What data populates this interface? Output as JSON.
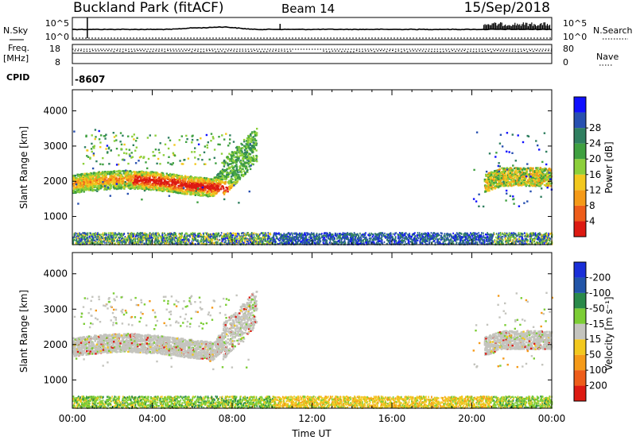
{
  "header": {
    "station": "Buckland Park (fitACF)",
    "beam": "Beam 14",
    "date": "15/Sep/2018"
  },
  "panels": {
    "nsky": {
      "label": "N.Sky",
      "ticks": [
        "10^5",
        "10^0"
      ],
      "right_ticks": [
        "10^5",
        "10^0"
      ],
      "right_label": "N.Search"
    },
    "freq": {
      "label": "Freq.",
      "unit": "[MHz]",
      "ticks": [
        "18",
        "8"
      ],
      "right_ticks": [
        "80",
        "0"
      ],
      "right_label": "Nave"
    },
    "cpid": {
      "label": "CPID",
      "value": "-8607"
    }
  },
  "chart_data": [
    {
      "type": "heatmap",
      "name": "power-panel",
      "ylabel": "Slant Range [km]",
      "yticks": [
        1000,
        2000,
        3000,
        4000
      ],
      "ylim": [
        200,
        4600
      ],
      "xlim_hours": [
        0,
        24
      ],
      "colorbar": {
        "label": "Power [dB]",
        "ticks": [
          "4",
          "8",
          "12",
          "16",
          "20",
          "24",
          "28"
        ],
        "colors": [
          "#1010ff",
          "#2850b0",
          "#2f7f60",
          "#3fa040",
          "#8ccf3a",
          "#f2c81e",
          "#f59a18",
          "#ee5d1a",
          "#dd1a12"
        ]
      }
    },
    {
      "type": "heatmap",
      "name": "velocity-panel",
      "ylabel": "Slant Range [km]",
      "yticks": [
        1000,
        2000,
        3000,
        4000
      ],
      "ylim": [
        200,
        4600
      ],
      "xlim_hours": [
        0,
        24
      ],
      "xlabel": "Time UT",
      "xticks": [
        "00:00",
        "04:00",
        "08:00",
        "12:00",
        "16:00",
        "20:00",
        "00:00"
      ],
      "colorbar": {
        "label": "Velocity [m s⁻¹]",
        "ticks": [
          "200",
          "100",
          "50",
          "15",
          "-15",
          "-50",
          "-100",
          "-200"
        ],
        "colors": [
          "#1a2fd8",
          "#2255a8",
          "#2a8a4a",
          "#7ccd35",
          "#c4c4be",
          "#f2c81e",
          "#f59a18",
          "#ee5d1a",
          "#dd1a12"
        ]
      }
    }
  ]
}
